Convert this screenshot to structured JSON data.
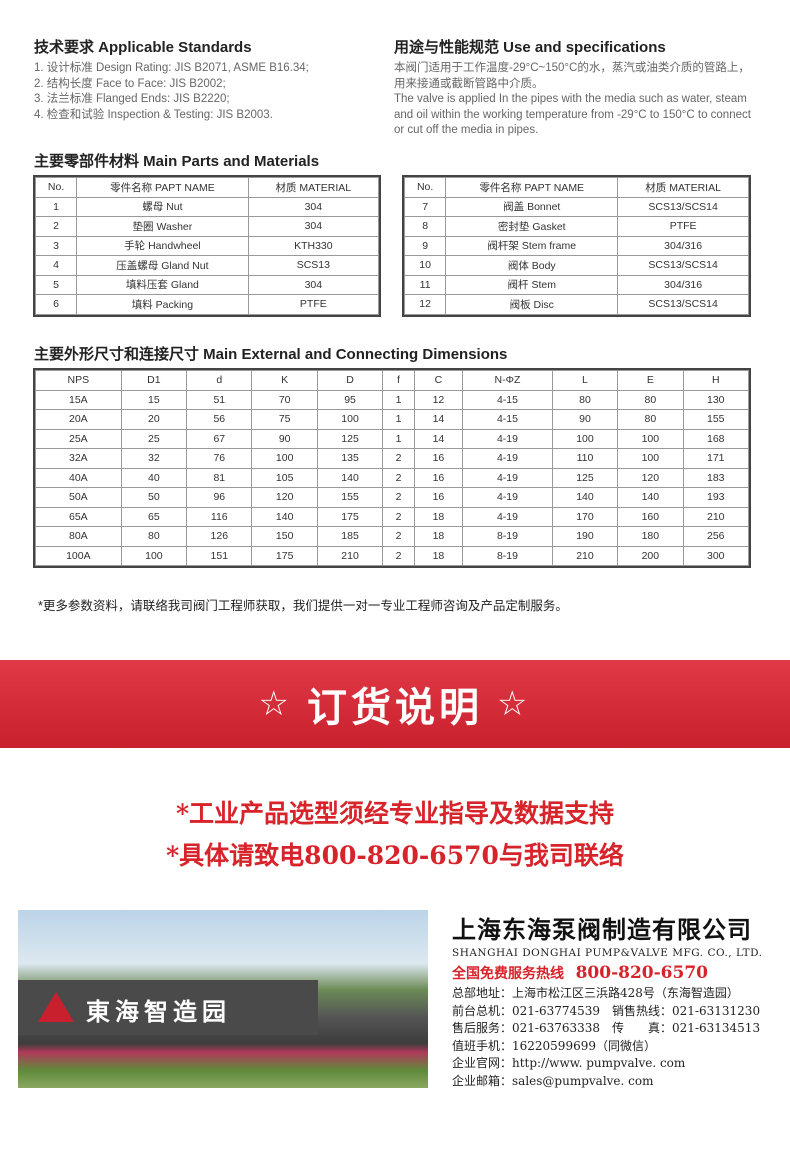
{
  "standards": {
    "title": "技术要求 Applicable Standards",
    "items": [
      "1. 设计标准 Design Rating: JIS B2071, ASME B16.34;",
      "2. 结构长度 Face to Face: JIS B2002;",
      "3. 法兰标准 Flanged Ends: JIS B2220;",
      "4. 检查和试验 Inspection & Testing: JIS B2003."
    ]
  },
  "use": {
    "title": "用途与性能规范 Use and specifications",
    "cn": "本阀门适用于工作温度-29°C~150°C的水，蒸汽或油类介质的管路上，用来接通或截断管路中介质。",
    "en": "The valve is applied In the pipes with the media such as water, steam and oil within the working temperature from -29°C to 150°C to connect or cut off the media in pipes."
  },
  "parts": {
    "title": "主要零部件材料 Main Parts and Materials",
    "headers": [
      "No.",
      "零件名称 PAPT NAME",
      "材质 MATERIAL"
    ],
    "left": [
      [
        "1",
        "螺母 Nut",
        "304"
      ],
      [
        "2",
        "垫圈 Washer",
        "304"
      ],
      [
        "3",
        "手轮 Handwheel",
        "KTH330"
      ],
      [
        "4",
        "压盖螺母 Gland Nut",
        "SCS13"
      ],
      [
        "5",
        "填料压套 Gland",
        "304"
      ],
      [
        "6",
        "填料 Packing",
        "PTFE"
      ]
    ],
    "right": [
      [
        "7",
        "阀盖 Bonnet",
        "SCS13/SCS14"
      ],
      [
        "8",
        "密封垫 Gasket",
        "PTFE"
      ],
      [
        "9",
        "阀杆架 Stem frame",
        "304/316"
      ],
      [
        "10",
        "阀体 Body",
        "SCS13/SCS14"
      ],
      [
        "11",
        "阀杆 Stem",
        "304/316"
      ],
      [
        "12",
        "阀板 Disc",
        "SCS13/SCS14"
      ]
    ]
  },
  "dims": {
    "title": "主要外形尺寸和连接尺寸 Main External and Connecting Dimensions",
    "headers": [
      "NPS",
      "D1",
      "d",
      "K",
      "D",
      "f",
      "C",
      "N-ΦZ",
      "L",
      "E",
      "H"
    ],
    "rows": [
      [
        "15A",
        "15",
        "51",
        "70",
        "95",
        "1",
        "12",
        "4-15",
        "80",
        "80",
        "130"
      ],
      [
        "20A",
        "20",
        "56",
        "75",
        "100",
        "1",
        "14",
        "4-15",
        "90",
        "80",
        "155"
      ],
      [
        "25A",
        "25",
        "67",
        "90",
        "125",
        "1",
        "14",
        "4-19",
        "100",
        "100",
        "168"
      ],
      [
        "32A",
        "32",
        "76",
        "100",
        "135",
        "2",
        "16",
        "4-19",
        "110",
        "100",
        "171"
      ],
      [
        "40A",
        "40",
        "81",
        "105",
        "140",
        "2",
        "16",
        "4-19",
        "125",
        "120",
        "183"
      ],
      [
        "50A",
        "50",
        "96",
        "120",
        "155",
        "2",
        "16",
        "4-19",
        "140",
        "140",
        "193"
      ],
      [
        "65A",
        "65",
        "116",
        "140",
        "175",
        "2",
        "18",
        "4-19",
        "170",
        "160",
        "210"
      ],
      [
        "80A",
        "80",
        "126",
        "150",
        "185",
        "2",
        "18",
        "8-19",
        "190",
        "180",
        "256"
      ],
      [
        "100A",
        "100",
        "151",
        "175",
        "210",
        "2",
        "18",
        "8-19",
        "210",
        "200",
        "300"
      ]
    ]
  },
  "note": "*更多参数资料，请联络我司阀门工程师获取，我们提供一对一专业工程师咨询及产品定制服务。",
  "banner": {
    "star": "☆",
    "title": "订货说明"
  },
  "red_lines": [
    "*工业产品选型须经专业指导及数据支持",
    "*具体请致电800-820-6570与我司联络"
  ],
  "photo": {
    "sign": "東海智造园"
  },
  "company": {
    "name_cn": "上海东海泵阀制造有限公司",
    "name_en": "SHANGHAI DONGHAI PUMP&VALVE MFG. CO., LTD.",
    "hotline_label": "全国免费服务热线",
    "hotline": "800-820-6570",
    "lines": [
      "总部地址：上海市松江区三浜路428号（东海智造园）",
      "前台总机：021-63774539　销售热线：021-63131230",
      "售后服务：021-63763338　传　　真：021-63134513",
      "值班手机：16220599699（同微信）",
      "企业官网：http://www. pumpvalve. com",
      "企业邮箱：sales@pumpvalve. com"
    ]
  },
  "colors": {
    "red": "#d7232a"
  }
}
